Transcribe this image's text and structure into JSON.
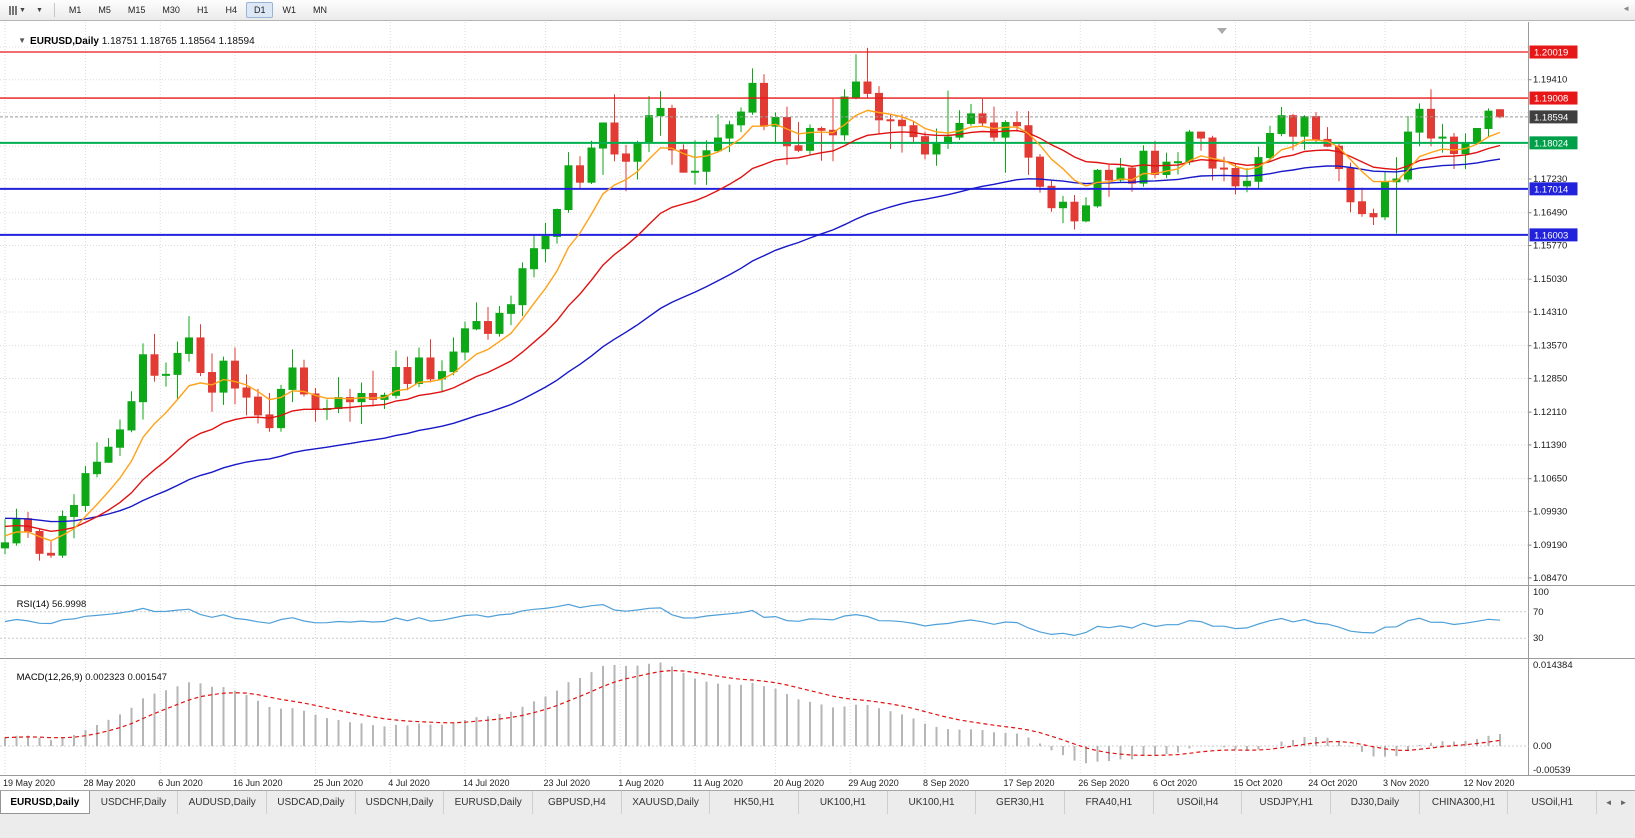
{
  "toolbar": {
    "chart_type_dropdown_icon": "▼",
    "period_dropdown_icon": "▼",
    "overflow_icon": "◄",
    "timeframes": [
      "M1",
      "M5",
      "M15",
      "M30",
      "H1",
      "H4",
      "D1",
      "W1",
      "MN"
    ],
    "active_timeframe": "D1"
  },
  "chart": {
    "collapse_icon": "▼",
    "symbol_label": "EURUSD,Daily",
    "ohlc_readout": "1.18751 1.18765 1.18564 1.18594"
  },
  "chart_data": {
    "type": "candlestick",
    "symbol": "EURUSD",
    "period": "Daily",
    "current_bar": {
      "open": 1.18751,
      "high": 1.18765,
      "low": 1.18564,
      "close": 1.18594
    },
    "colors": {
      "up": "#0ca816",
      "down": "#e13b34"
    },
    "y_axis": {
      "grid": [
        {
          "price": 1.2013,
          "label": ""
        },
        {
          "price": 1.1941,
          "label": "1.19410"
        },
        {
          "price": 1.1869,
          "label": ""
        },
        {
          "price": 1.1795,
          "label": ""
        },
        {
          "price": 1.1723,
          "label": "1.17230"
        },
        {
          "price": 1.1649,
          "label": "1.16490"
        },
        {
          "price": 1.1577,
          "label": "1.15770"
        },
        {
          "price": 1.1503,
          "label": "1.15030"
        },
        {
          "price": 1.1431,
          "label": "1.14310"
        },
        {
          "price": 1.1357,
          "label": "1.13570"
        },
        {
          "price": 1.1285,
          "label": "1.12850"
        },
        {
          "price": 1.1211,
          "label": "1.12110"
        },
        {
          "price": 1.1139,
          "label": "1.11390"
        },
        {
          "price": 1.1065,
          "label": "1.10650"
        },
        {
          "price": 1.0993,
          "label": "1.09930"
        },
        {
          "price": 1.0919,
          "label": "1.09190"
        },
        {
          "price": 1.0847,
          "label": "1.08470"
        }
      ]
    },
    "x_axis": {
      "labels": [
        {
          "text": "19 May 2020",
          "i": 0
        },
        {
          "text": "28 May 2020",
          "i": 7
        },
        {
          "text": "6 Jun 2020",
          "i": 13.5
        },
        {
          "text": "16 Jun 2020",
          "i": 20
        },
        {
          "text": "25 Jun 2020",
          "i": 27
        },
        {
          "text": "4 Jul 2020",
          "i": 33.5
        },
        {
          "text": "14 Jul 2020",
          "i": 40
        },
        {
          "text": "23 Jul 2020",
          "i": 47
        },
        {
          "text": "1 Aug 2020",
          "i": 53.5
        },
        {
          "text": "11 Aug 2020",
          "i": 60
        },
        {
          "text": "20 Aug 2020",
          "i": 67
        },
        {
          "text": "29 Aug 2020",
          "i": 73.5
        },
        {
          "text": "8 Sep 2020",
          "i": 80
        },
        {
          "text": "17 Sep 2020",
          "i": 87
        },
        {
          "text": "26 Sep 2020",
          "i": 93.5
        },
        {
          "text": "6 Oct 2020",
          "i": 100
        },
        {
          "text": "15 Oct 2020",
          "i": 107
        },
        {
          "text": "24 Oct 2020",
          "i": 113.5
        },
        {
          "text": "3 Nov 2020",
          "i": 120
        },
        {
          "text": "12 Nov 2020",
          "i": 127
        }
      ]
    },
    "horizontal_lines": [
      {
        "price": 1.20019,
        "label": "1.20019",
        "color": "#e81717",
        "badge_color": "#e81717",
        "width": 1.3
      },
      {
        "price": 1.19008,
        "label": "1.19008",
        "color": "#e81717",
        "badge_color": "#e81717",
        "width": 1.3
      },
      {
        "price": 1.18594,
        "label": "1.18594",
        "color": "#999999",
        "badge_color": "#3f3f3f",
        "width": 1,
        "dash": "3,2",
        "current": true
      },
      {
        "price": 1.18024,
        "label": "1.18024",
        "color": "#00b050",
        "badge_color": "#00a04a",
        "width": 2
      },
      {
        "price": 1.17014,
        "label": "1.17014",
        "color": "#2222dd",
        "badge_color": "#2222dd",
        "width": 2
      },
      {
        "price": 1.16003,
        "label": "1.16003",
        "color": "#2222dd",
        "badge_color": "#2222dd",
        "width": 2
      }
    ],
    "moving_averages": [
      {
        "name": "ma-slow",
        "period": 50,
        "seed_offset": 0.0056,
        "color": "#1818c8"
      },
      {
        "name": "ma-mid",
        "period": 20,
        "seed_offset": 0.004,
        "color": "#e01212"
      },
      {
        "name": "ma-fast",
        "period": 8,
        "seed_offset": 0.002,
        "color": "#ffa217"
      }
    ],
    "rsi": {
      "label": "RSI(14)",
      "value": "56.9998",
      "period": 14,
      "color": "#4fa0d8",
      "levels": [
        {
          "v": 100,
          "label": "100"
        },
        {
          "v": 70,
          "label": "70"
        },
        {
          "v": 30,
          "label": "30"
        }
      ]
    },
    "macd": {
      "label": "MACD(12,26,9)",
      "value": "0.002323 0.001547",
      "fast": 12,
      "slow": 26,
      "signal": 9,
      "histogram_color": "#b6b6b6",
      "signal_color": "#e01212",
      "axis_labels": [
        {
          "v": 0.014384,
          "label": "0.014384"
        },
        {
          "v": 0,
          "label": "0.00"
        },
        {
          "v": -0.00539,
          "label": "-0.00539"
        }
      ]
    },
    "candles": [
      [
        1.0913,
        1.0976,
        1.0899,
        1.0924
      ],
      [
        1.0924,
        1.0999,
        1.0918,
        1.0977
      ],
      [
        1.0977,
        1.0992,
        1.0935,
        1.0949
      ],
      [
        1.0949,
        1.0954,
        1.0885,
        1.0901
      ],
      [
        1.0901,
        1.0927,
        1.0891,
        1.0897
      ],
      [
        1.0897,
        1.0995,
        1.0891,
        1.0982
      ],
      [
        1.0982,
        1.1031,
        1.0934,
        1.1006
      ],
      [
        1.1006,
        1.1093,
        1.0992,
        1.1076
      ],
      [
        1.1076,
        1.1145,
        1.1068,
        1.1101
      ],
      [
        1.1101,
        1.1154,
        1.11,
        1.1134
      ],
      [
        1.1134,
        1.1195,
        1.1115,
        1.1172
      ],
      [
        1.1172,
        1.1257,
        1.1167,
        1.1234
      ],
      [
        1.1234,
        1.1362,
        1.1195,
        1.1337
      ],
      [
        1.1337,
        1.1383,
        1.1278,
        1.1292
      ],
      [
        1.1292,
        1.132,
        1.1267,
        1.1294
      ],
      [
        1.1294,
        1.1366,
        1.124,
        1.134
      ],
      [
        1.134,
        1.1422,
        1.1322,
        1.1374
      ],
      [
        1.1374,
        1.1404,
        1.129,
        1.1298
      ],
      [
        1.1298,
        1.134,
        1.1212,
        1.1255
      ],
      [
        1.1255,
        1.1333,
        1.1227,
        1.1323
      ],
      [
        1.1323,
        1.1353,
        1.1228,
        1.1264
      ],
      [
        1.1264,
        1.1294,
        1.1204,
        1.1244
      ],
      [
        1.1244,
        1.1262,
        1.1186,
        1.1205
      ],
      [
        1.1205,
        1.1253,
        1.1168,
        1.1177
      ],
      [
        1.1177,
        1.1271,
        1.1168,
        1.1261
      ],
      [
        1.1261,
        1.1349,
        1.1233,
        1.1308
      ],
      [
        1.1308,
        1.1326,
        1.1245,
        1.1251
      ],
      [
        1.1251,
        1.1264,
        1.119,
        1.1218
      ],
      [
        1.1218,
        1.1239,
        1.1194,
        1.1219
      ],
      [
        1.1219,
        1.1288,
        1.1209,
        1.1243
      ],
      [
        1.1243,
        1.1262,
        1.119,
        1.1234
      ],
      [
        1.1234,
        1.1276,
        1.1185,
        1.1252
      ],
      [
        1.1252,
        1.1302,
        1.1224,
        1.1239
      ],
      [
        1.1239,
        1.1254,
        1.1218,
        1.1248
      ],
      [
        1.1248,
        1.1346,
        1.1241,
        1.1309
      ],
      [
        1.1309,
        1.1333,
        1.1259,
        1.1274
      ],
      [
        1.1274,
        1.1353,
        1.1266,
        1.133
      ],
      [
        1.133,
        1.1371,
        1.1276,
        1.1284
      ],
      [
        1.1284,
        1.1325,
        1.1255,
        1.13
      ],
      [
        1.13,
        1.1375,
        1.1292,
        1.1343
      ],
      [
        1.1343,
        1.141,
        1.1325,
        1.1394
      ],
      [
        1.1394,
        1.1452,
        1.1391,
        1.141
      ],
      [
        1.141,
        1.1442,
        1.137,
        1.1384
      ],
      [
        1.1384,
        1.1444,
        1.1377,
        1.1428
      ],
      [
        1.1428,
        1.1467,
        1.1402,
        1.1447
      ],
      [
        1.1447,
        1.154,
        1.1422,
        1.1526
      ],
      [
        1.1526,
        1.1601,
        1.1507,
        1.157
      ],
      [
        1.157,
        1.1627,
        1.154,
        1.1597
      ],
      [
        1.1597,
        1.1658,
        1.1581,
        1.1656
      ],
      [
        1.1656,
        1.1782,
        1.1649,
        1.1752
      ],
      [
        1.1752,
        1.1773,
        1.17,
        1.1716
      ],
      [
        1.1716,
        1.1807,
        1.1712,
        1.1791
      ],
      [
        1.1791,
        1.1847,
        1.1732,
        1.1846
      ],
      [
        1.1846,
        1.1909,
        1.1762,
        1.1778
      ],
      [
        1.1778,
        1.1798,
        1.1696,
        1.1762
      ],
      [
        1.1762,
        1.1807,
        1.1722,
        1.1803
      ],
      [
        1.1803,
        1.1905,
        1.1782,
        1.1862
      ],
      [
        1.1862,
        1.1916,
        1.1818,
        1.1878
      ],
      [
        1.1878,
        1.1886,
        1.1754,
        1.1787
      ],
      [
        1.1787,
        1.1799,
        1.1737,
        1.1738
      ],
      [
        1.1738,
        1.1808,
        1.1711,
        1.174
      ],
      [
        1.174,
        1.1808,
        1.171,
        1.1785
      ],
      [
        1.1785,
        1.1865,
        1.1781,
        1.1813
      ],
      [
        1.1813,
        1.1851,
        1.1782,
        1.1842
      ],
      [
        1.1842,
        1.188,
        1.1826,
        1.187
      ],
      [
        1.187,
        1.1966,
        1.1864,
        1.1933
      ],
      [
        1.1933,
        1.1953,
        1.183,
        1.1839
      ],
      [
        1.1839,
        1.1869,
        1.18,
        1.1858
      ],
      [
        1.1858,
        1.1882,
        1.1754,
        1.1796
      ],
      [
        1.1796,
        1.1848,
        1.1782,
        1.1786
      ],
      [
        1.1786,
        1.1843,
        1.1775,
        1.1834
      ],
      [
        1.1834,
        1.1838,
        1.1763,
        1.183
      ],
      [
        1.183,
        1.1899,
        1.1762,
        1.182
      ],
      [
        1.182,
        1.192,
        1.1807,
        1.1903
      ],
      [
        1.1903,
        1.1997,
        1.1898,
        1.1936
      ],
      [
        1.1936,
        1.2011,
        1.1901,
        1.1911
      ],
      [
        1.1911,
        1.1927,
        1.1822,
        1.1853
      ],
      [
        1.1853,
        1.1864,
        1.1789,
        1.1852
      ],
      [
        1.1852,
        1.1865,
        1.1781,
        1.184
      ],
      [
        1.184,
        1.1849,
        1.1804,
        1.1816
      ],
      [
        1.1816,
        1.1827,
        1.1766,
        1.1778
      ],
      [
        1.1778,
        1.1834,
        1.1752,
        1.1801
      ],
      [
        1.1801,
        1.1917,
        1.1789,
        1.1815
      ],
      [
        1.1815,
        1.1874,
        1.1809,
        1.1845
      ],
      [
        1.1845,
        1.1888,
        1.184,
        1.1866
      ],
      [
        1.1866,
        1.1899,
        1.1838,
        1.1846
      ],
      [
        1.1846,
        1.1882,
        1.1806,
        1.1815
      ],
      [
        1.1815,
        1.1852,
        1.1737,
        1.1847
      ],
      [
        1.1847,
        1.1872,
        1.1827,
        1.184
      ],
      [
        1.184,
        1.1872,
        1.1732,
        1.1771
      ],
      [
        1.1771,
        1.1778,
        1.1693,
        1.1707
      ],
      [
        1.1707,
        1.1719,
        1.1651,
        1.166
      ],
      [
        1.166,
        1.1686,
        1.1626,
        1.1672
      ],
      [
        1.1672,
        1.1688,
        1.1612,
        1.1631
      ],
      [
        1.1631,
        1.1683,
        1.1628,
        1.1664
      ],
      [
        1.1664,
        1.1745,
        1.166,
        1.1742
      ],
      [
        1.1742,
        1.1755,
        1.1684,
        1.1721
      ],
      [
        1.1721,
        1.1769,
        1.1717,
        1.1747
      ],
      [
        1.1747,
        1.1752,
        1.1695,
        1.1714
      ],
      [
        1.1714,
        1.1797,
        1.1706,
        1.1784
      ],
      [
        1.1784,
        1.1807,
        1.1725,
        1.1733
      ],
      [
        1.1733,
        1.1781,
        1.1725,
        1.176
      ],
      [
        1.176,
        1.1782,
        1.1733,
        1.1761
      ],
      [
        1.1761,
        1.1831,
        1.1754,
        1.1826
      ],
      [
        1.1826,
        1.1827,
        1.1785,
        1.1813
      ],
      [
        1.1813,
        1.1818,
        1.172,
        1.1747
      ],
      [
        1.1747,
        1.1772,
        1.1718,
        1.1746
      ],
      [
        1.1746,
        1.1758,
        1.1689,
        1.1708
      ],
      [
        1.1708,
        1.1747,
        1.1694,
        1.1718
      ],
      [
        1.1718,
        1.1794,
        1.1703,
        1.177
      ],
      [
        1.177,
        1.184,
        1.176,
        1.1823
      ],
      [
        1.1823,
        1.1881,
        1.1817,
        1.1862
      ],
      [
        1.1862,
        1.1866,
        1.1786,
        1.1817
      ],
      [
        1.1817,
        1.1863,
        1.1787,
        1.186
      ],
      [
        1.186,
        1.187,
        1.1803,
        1.181
      ],
      [
        1.181,
        1.1837,
        1.1793,
        1.1795
      ],
      [
        1.1795,
        1.18,
        1.1718,
        1.1746
      ],
      [
        1.1746,
        1.1759,
        1.165,
        1.1673
      ],
      [
        1.1673,
        1.1704,
        1.164,
        1.1647
      ],
      [
        1.1647,
        1.1658,
        1.1622,
        1.164
      ],
      [
        1.164,
        1.174,
        1.1633,
        1.1717
      ],
      [
        1.1717,
        1.1771,
        1.1603,
        1.1723
      ],
      [
        1.1723,
        1.1861,
        1.1716,
        1.1826
      ],
      [
        1.1826,
        1.1889,
        1.1795,
        1.1876
      ],
      [
        1.1876,
        1.192,
        1.1795,
        1.1813
      ],
      [
        1.1813,
        1.1844,
        1.1781,
        1.1815
      ],
      [
        1.1815,
        1.1824,
        1.1745,
        1.1779
      ],
      [
        1.1779,
        1.1823,
        1.1745,
        1.1801
      ],
      [
        1.1801,
        1.1834,
        1.1799,
        1.1834
      ],
      [
        1.1834,
        1.1878,
        1.1814,
        1.1872
      ],
      [
        1.18751,
        1.18765,
        1.18564,
        1.18594
      ]
    ]
  },
  "tabbar": {
    "tabs": [
      "EURUSD,Daily",
      "USDCHF,Daily",
      "AUDUSD,Daily",
      "USDCAD,Daily",
      "USDCNH,Daily",
      "EURUSD,Daily",
      "GBPUSD,H4",
      "XAUUSD,Daily",
      "HK50,H1",
      "UK100,H1",
      "UK100,H1",
      "GER30,H1",
      "FRA40,H1",
      "USOil,H4",
      "USDJPY,H1",
      "DJ30,Daily",
      "CHINA300,H1",
      "USOil,H1"
    ],
    "active_index": 0,
    "scroll_left_icon": "◄",
    "scroll_right_icon": "►"
  }
}
